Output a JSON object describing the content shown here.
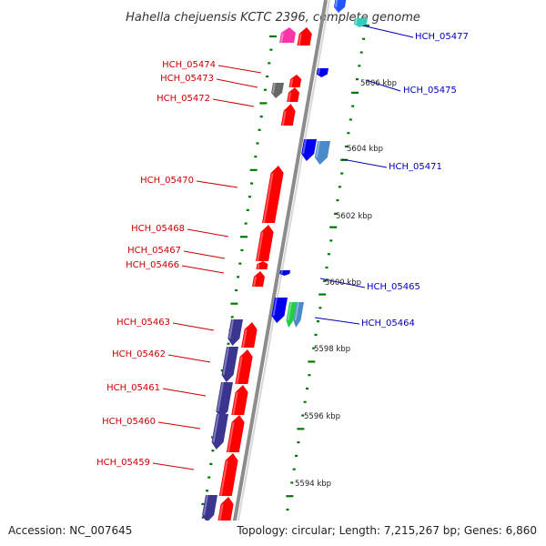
{
  "title": "Hahella chejuensis KCTC 2396, complete genome",
  "footer": {
    "accession": "Accession: NC_007645",
    "topology": "Topology: circular; Length: 7,215,267 bp; Genes: 6,860"
  },
  "colors": {
    "forward_label": "#cc0000",
    "reverse_label": "#0000bb",
    "forward_gene": "#ff0000",
    "reverse_gene": "#0000ee",
    "dark_gene": "#3b3590",
    "tick": "#007700",
    "backbone": "#9a9a9a"
  },
  "forward_labels": [
    {
      "id": "HCH_05474",
      "text": "HCH_05474"
    },
    {
      "id": "HCH_05473",
      "text": "HCH_05473"
    },
    {
      "id": "HCH_05472",
      "text": "HCH_05472"
    },
    {
      "id": "HCH_05470",
      "text": "HCH_05470"
    },
    {
      "id": "HCH_05468",
      "text": "HCH_05468"
    },
    {
      "id": "HCH_05467",
      "text": "HCH_05467"
    },
    {
      "id": "HCH_05466",
      "text": "HCH_05466"
    },
    {
      "id": "HCH_05463",
      "text": "HCH_05463"
    },
    {
      "id": "HCH_05462",
      "text": "HCH_05462"
    },
    {
      "id": "HCH_05461",
      "text": "HCH_05461"
    },
    {
      "id": "HCH_05460",
      "text": "HCH_05460"
    },
    {
      "id": "HCH_05459",
      "text": "HCH_05459"
    }
  ],
  "reverse_labels": [
    {
      "id": "HCH_05477",
      "text": "HCH_05477"
    },
    {
      "id": "HCH_05475",
      "text": "HCH_05475"
    },
    {
      "id": "HCH_05471",
      "text": "HCH_05471"
    },
    {
      "id": "HCH_05465",
      "text": "HCH_05465"
    },
    {
      "id": "HCH_05464",
      "text": "HCH_05464"
    }
  ],
  "scale_labels": [
    "5606 kbp",
    "5604 kbp",
    "5602 kbp",
    "5600 kbp",
    "5598 kbp",
    "5596 kbp",
    "5594 kbp"
  ]
}
